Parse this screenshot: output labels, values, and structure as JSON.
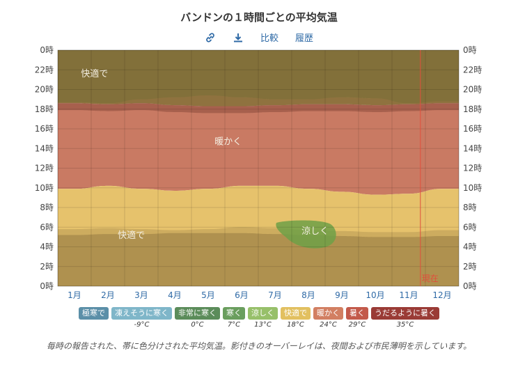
{
  "title": "バンドンの１時間ごとの平均気温",
  "toolbar": {
    "link_icon": "link-icon",
    "download_icon": "download-icon",
    "compare_label": "比較",
    "history_label": "履歴"
  },
  "chart_data": {
    "type": "area",
    "y_ticks": [
      "0時",
      "2時",
      "4時",
      "6時",
      "8時",
      "10時",
      "12時",
      "14時",
      "16時",
      "18時",
      "20時",
      "22時",
      "0時"
    ],
    "ylim": [
      0,
      24
    ],
    "months": [
      "1月",
      "2月",
      "3月",
      "4月",
      "5月",
      "6月",
      "7月",
      "8月",
      "9月",
      "10月",
      "11月",
      "12月"
    ],
    "current_marker": {
      "label": "現在",
      "month_position": 10.85
    },
    "bands": [
      {
        "name": "快適で",
        "color": "#a8944f",
        "label_pos": {
          "month": 0.6,
          "hour": 21.3
        }
      },
      {
        "name": "暖かく",
        "color": "#c97a63",
        "label_pos": {
          "month": 4.6,
          "hour": 14.4
        }
      },
      {
        "name": "快適で",
        "color": "#e6c26c",
        "label_pos": {
          "month": 1.7,
          "hour": 4.9
        }
      },
      {
        "name": "涼しく",
        "color": "#7a9e4a",
        "label_pos": {
          "month": 7.2,
          "hour": 5.3
        }
      }
    ],
    "boundaries": {
      "upper_comfortable_bottom": [
        18.6,
        18.5,
        18.6,
        18.4,
        18.3,
        18.3,
        18.4,
        18.5,
        18.5,
        18.4,
        18.5,
        18.6
      ],
      "warm_bottom": [
        9.9,
        10.2,
        9.9,
        9.7,
        9.9,
        10.2,
        10.2,
        9.9,
        9.6,
        9.3,
        9.4,
        9.9
      ],
      "lower_comfortable_bottom": [
        5.8,
        5.9,
        5.8,
        5.7,
        5.8,
        6.0,
        5.9,
        5.7,
        5.6,
        5.5,
        5.5,
        5.7
      ],
      "dark_shade_top": [
        18.7,
        18.6,
        19.0,
        19.2,
        19.4,
        19.2,
        19.0,
        19.0,
        19.2,
        19.1,
        18.6,
        18.8
      ],
      "shade_bottom": [
        5.2,
        5.3,
        5.3,
        5.4,
        5.4,
        5.4,
        5.3,
        5.2,
        5.1,
        5.0,
        5.0,
        5.1
      ]
    }
  },
  "legend": [
    {
      "label": "極寒で",
      "color": "#5b8fa8",
      "tick": ""
    },
    {
      "label": "凍えそうに寒く",
      "color": "#7fb6c9",
      "tick": "-9°C"
    },
    {
      "label": "非常に寒く",
      "color": "#5b8c5a",
      "tick": "0°C"
    },
    {
      "label": "寒く",
      "color": "#6a9e5e",
      "tick": "7°C"
    },
    {
      "label": "涼しく",
      "color": "#97c06a",
      "tick": "13°C"
    },
    {
      "label": "快適で",
      "color": "#e2c060",
      "tick": "18°C"
    },
    {
      "label": "暖かく",
      "color": "#d27f62",
      "tick": "24°C"
    },
    {
      "label": "暑く",
      "color": "#c35a4b",
      "tick": "29°C"
    },
    {
      "label": "うだるように暑く",
      "color": "#9a3b36",
      "tick": "35°C"
    }
  ],
  "caption": "毎時の報告された、帯に色分けされた平均気温。影付きのオーバーレイは、夜間および市民薄明を示しています。"
}
